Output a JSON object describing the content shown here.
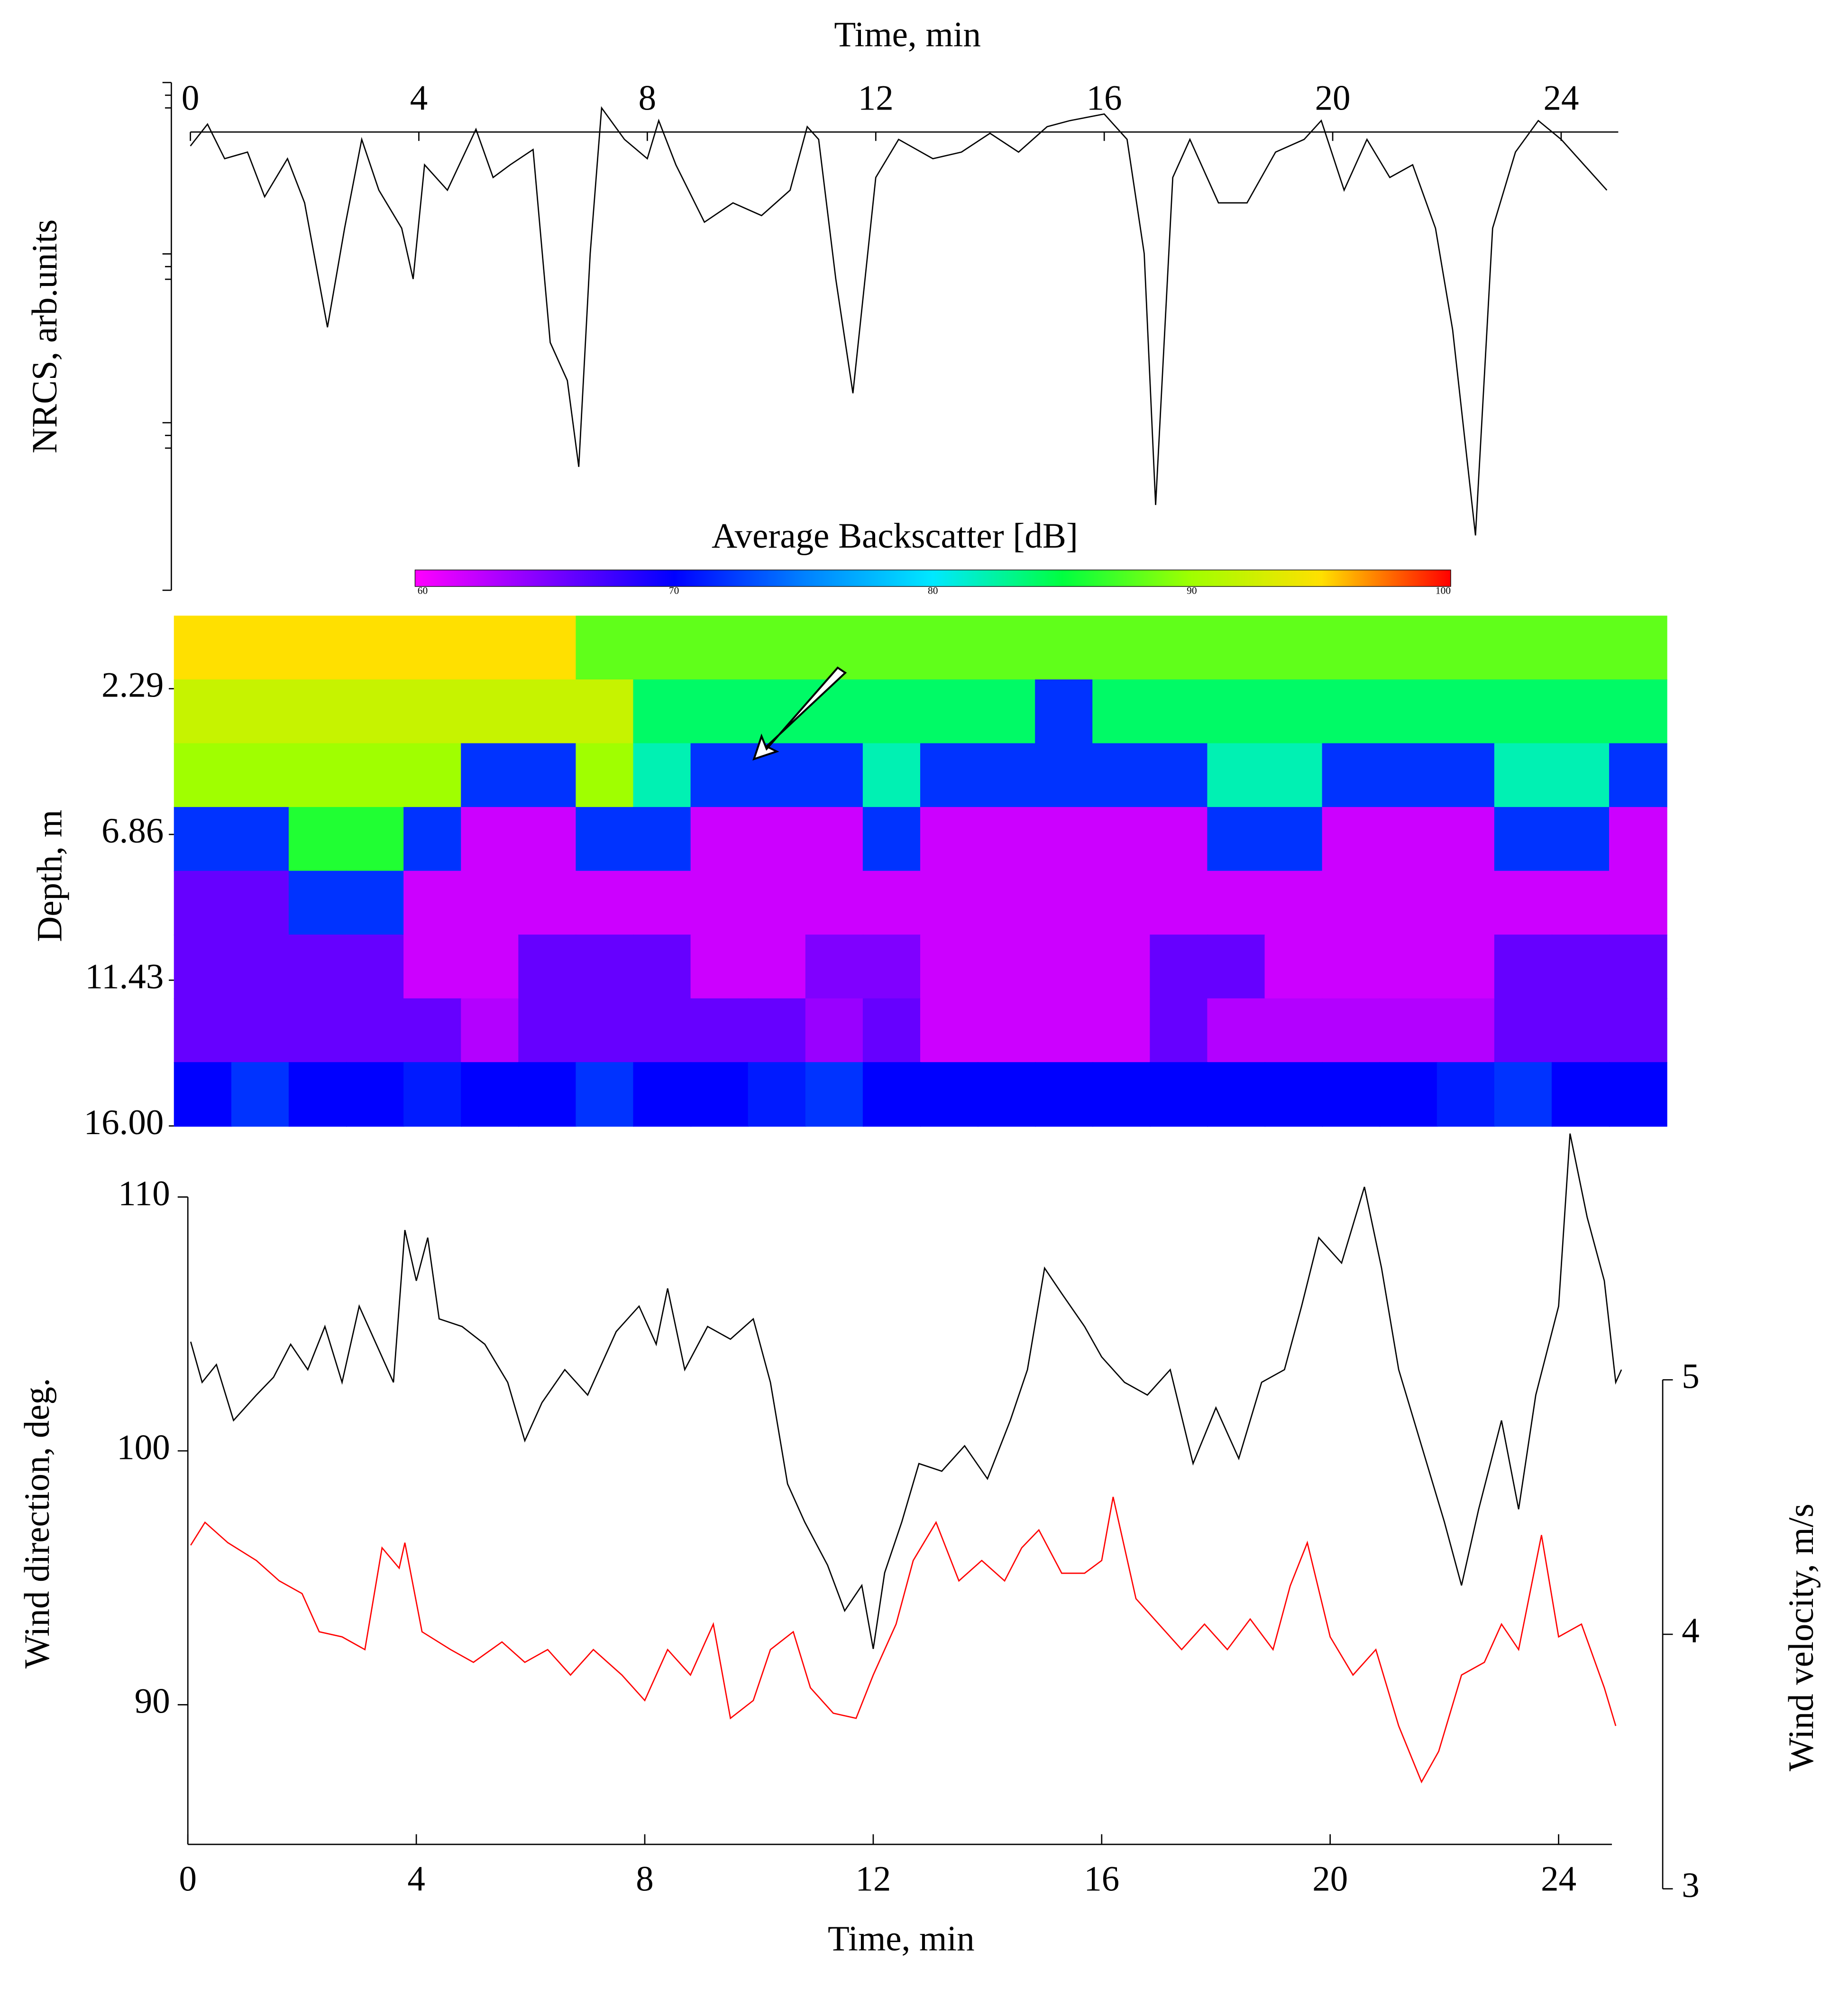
{
  "chart_data": [
    {
      "type": "line",
      "xlabel": "Time, min",
      "ylabel": "NRCS, arb.units",
      "xlim": [
        0,
        25
      ],
      "xticks": [
        0,
        4,
        8,
        12,
        16,
        20,
        24
      ],
      "ylim": [
        0,
        10
      ],
      "x": [
        0,
        0.3,
        0.6,
        1.0,
        1.3,
        1.7,
        2.0,
        2.4,
        2.7,
        3.0,
        3.3,
        3.7,
        3.9,
        4.1,
        4.5,
        5.0,
        5.3,
        5.6,
        6.0,
        6.3,
        6.6,
        6.8,
        7.0,
        7.2,
        7.6,
        8.0,
        8.2,
        8.5,
        9.0,
        9.5,
        10.0,
        10.5,
        10.8,
        11.0,
        11.3,
        11.6,
        12.0,
        12.4,
        13.0,
        13.5,
        14.0,
        14.5,
        15.0,
        15.4,
        16.0,
        16.4,
        16.7,
        16.9,
        17.2,
        17.5,
        18.0,
        18.5,
        19.0,
        19.5,
        19.8,
        20.2,
        20.6,
        21.0,
        21.4,
        21.8,
        22.1,
        22.5,
        22.8,
        23.2,
        23.6,
        24.0,
        24.4,
        24.8
      ],
      "values": [
        8.75,
        9.18,
        8.5,
        8.63,
        7.75,
        8.5,
        7.63,
        5.18,
        7.13,
        8.88,
        7.88,
        7.13,
        6.13,
        8.38,
        7.88,
        9.08,
        8.13,
        8.38,
        8.68,
        4.88,
        4.13,
        2.43,
        6.63,
        9.5,
        8.88,
        8.5,
        9.25,
        8.38,
        7.25,
        7.63,
        7.38,
        7.88,
        9.13,
        8.88,
        6.13,
        3.88,
        8.13,
        8.88,
        8.5,
        8.63,
        9.0,
        8.63,
        9.13,
        9.25,
        9.38,
        8.88,
        6.63,
        1.68,
        8.13,
        8.88,
        7.63,
        7.63,
        8.63,
        8.88,
        9.25,
        7.88,
        8.88,
        8.13,
        8.38,
        7.13,
        5.13,
        1.08,
        7.13,
        8.63,
        9.25,
        8.88,
        8.38,
        7.88
      ],
      "color": "#000000"
    },
    {
      "type": "heatmap",
      "title": "Average Backscatter [dB]",
      "ylabel": "Depth, m",
      "xlim": [
        -0.5,
        25.5
      ],
      "ylim": [
        0,
        16
      ],
      "y_reversed": true,
      "yticks": [
        2.29,
        6.86,
        11.43,
        {
          "value": 16,
          "label": "16.00"
        }
      ],
      "clim": [
        60,
        100
      ],
      "colorbar_ticks": [
        60,
        70,
        80,
        90,
        100
      ],
      "colormap": [
        "#ff00ff",
        "#8000ff",
        "#0000ff",
        "#0080ff",
        "#00e8ff",
        "#00ff40",
        "#a0ff00",
        "#ffe000",
        "#ff0000"
      ],
      "x": [
        0,
        1,
        2,
        3,
        4,
        5,
        6,
        7,
        8,
        9,
        10,
        11,
        12,
        13,
        14,
        15,
        16,
        17,
        18,
        19,
        20,
        21,
        22,
        23,
        24,
        25
      ],
      "y": [
        1,
        3,
        5,
        7,
        9,
        11,
        13,
        15
      ],
      "z": [
        [
          95,
          95,
          95,
          95,
          95,
          95,
          95,
          88,
          88,
          88,
          88,
          88,
          88,
          88,
          88,
          88,
          88,
          88,
          88,
          88,
          88,
          88,
          88,
          88,
          88,
          88
        ],
        [
          92,
          92,
          92,
          92,
          92,
          92,
          92,
          92,
          84,
          84,
          84,
          84,
          84,
          84,
          84,
          72,
          84,
          84,
          84,
          84,
          84,
          84,
          84,
          84,
          84,
          84
        ],
        [
          90,
          90,
          90,
          90,
          90,
          72,
          72,
          90,
          82,
          72,
          72,
          72,
          82,
          72,
          72,
          72,
          72,
          72,
          82,
          82,
          72,
          72,
          72,
          82,
          82,
          72
        ],
        [
          72,
          72,
          86,
          86,
          72,
          62,
          62,
          72,
          72,
          62,
          62,
          62,
          72,
          62,
          62,
          62,
          62,
          62,
          72,
          72,
          62,
          62,
          62,
          72,
          72,
          62
        ],
        [
          66,
          66,
          72,
          72,
          62,
          62,
          62,
          62,
          62,
          62,
          62,
          62,
          62,
          62,
          62,
          62,
          62,
          62,
          62,
          62,
          62,
          62,
          62,
          62,
          62,
          62
        ],
        [
          66,
          66,
          66,
          66,
          62,
          62,
          66,
          66,
          66,
          62,
          62,
          65,
          65,
          62,
          62,
          62,
          62,
          66,
          66,
          62,
          62,
          62,
          62,
          66,
          66,
          66
        ],
        [
          66,
          66,
          66,
          66,
          66,
          63,
          66,
          66,
          66,
          66,
          66,
          64,
          66,
          62,
          62,
          62,
          62,
          66,
          63,
          63,
          63,
          63,
          63,
          66,
          66,
          66
        ],
        [
          70,
          72,
          70,
          70,
          71,
          70,
          70,
          72,
          70,
          70,
          71,
          72,
          70,
          70,
          70,
          70,
          70,
          70,
          70,
          70,
          70,
          70,
          71,
          72,
          70,
          70
        ]
      ]
    },
    {
      "type": "line",
      "xlabel": "Time, min",
      "ylabel": "Wind direction, deg.",
      "y2label": "Wind velocity, m/s",
      "xlim": [
        0,
        25
      ],
      "xticks": [
        0,
        4,
        8,
        12,
        16,
        20,
        24
      ],
      "ylim": [
        84.5,
        110
      ],
      "yticks": [
        90,
        100,
        110
      ],
      "y2lim": [
        3,
        5
      ],
      "y2ticks": [
        3,
        4,
        5
      ],
      "series": [
        {
          "color": "#000000",
          "x": [
            0.05,
            0.25,
            0.5,
            0.8,
            1.2,
            1.5,
            1.8,
            2.1,
            2.4,
            2.7,
            3.0,
            3.3,
            3.6,
            3.8,
            4.0,
            4.2,
            4.4,
            4.8,
            5.2,
            5.6,
            5.9,
            6.2,
            6.6,
            7.0,
            7.5,
            7.9,
            8.2,
            8.4,
            8.7,
            9.1,
            9.5,
            9.9,
            10.2,
            10.5,
            10.8,
            11.2,
            11.5,
            11.8,
            12.0,
            12.2,
            12.5,
            12.8,
            13.2,
            13.6,
            14.0,
            14.4,
            14.7,
            15.0,
            15.3,
            15.7,
            16.0,
            16.4,
            16.8,
            17.2,
            17.6,
            18.0,
            18.4,
            18.8,
            19.2,
            19.5,
            19.8,
            20.2,
            20.6,
            20.9,
            21.2,
            21.6,
            22.0,
            22.3,
            22.6,
            23.0,
            23.3,
            23.6,
            24.0,
            24.2,
            24.5,
            24.8,
            25.0,
            25.1
          ],
          "values": [
            104.3,
            102.7,
            103.4,
            101.2,
            102.2,
            102.9,
            104.2,
            103.2,
            104.9,
            102.7,
            105.7,
            104.2,
            102.7,
            108.7,
            106.7,
            108.4,
            105.2,
            104.9,
            104.2,
            102.7,
            100.4,
            101.9,
            103.2,
            102.2,
            104.7,
            105.7,
            104.2,
            106.4,
            103.2,
            104.9,
            104.4,
            105.2,
            102.7,
            98.7,
            97.2,
            95.5,
            93.7,
            94.7,
            92.2,
            95.2,
            97.2,
            99.5,
            99.2,
            100.2,
            98.9,
            101.2,
            103.2,
            107.2,
            106.2,
            104.9,
            103.7,
            102.7,
            102.2,
            103.2,
            99.5,
            101.7,
            99.7,
            102.7,
            103.2,
            105.7,
            108.4,
            107.4,
            110.4,
            107.2,
            103.2,
            100.2,
            97.2,
            94.7,
            97.7,
            101.2,
            97.7,
            102.2,
            105.7,
            112.5,
            109.2,
            106.7,
            102.7,
            103.2
          ]
        },
        {
          "color": "#ff0000",
          "axis": "y2",
          "x": [
            0.05,
            0.3,
            0.7,
            1.2,
            1.6,
            2.0,
            2.3,
            2.7,
            3.1,
            3.4,
            3.7,
            3.8,
            4.1,
            4.6,
            5.0,
            5.5,
            5.9,
            6.3,
            6.7,
            7.1,
            7.6,
            8.0,
            8.4,
            8.8,
            9.2,
            9.5,
            9.9,
            10.2,
            10.6,
            10.9,
            11.3,
            11.7,
            12.0,
            12.4,
            12.7,
            13.1,
            13.5,
            13.9,
            14.3,
            14.6,
            14.9,
            15.3,
            15.7,
            16.0,
            16.2,
            16.6,
            17.0,
            17.4,
            17.8,
            18.2,
            18.6,
            19.0,
            19.3,
            19.6,
            20.0,
            20.4,
            20.8,
            21.2,
            21.6,
            21.9,
            22.3,
            22.7,
            23.0,
            23.3,
            23.7,
            24.0,
            24.4,
            24.8,
            25.0
          ],
          "values": [
            4.35,
            4.44,
            4.36,
            4.29,
            4.21,
            4.16,
            4.01,
            3.99,
            3.94,
            4.34,
            4.26,
            4.36,
            4.01,
            3.94,
            3.89,
            3.97,
            3.89,
            3.94,
            3.84,
            3.94,
            3.84,
            3.74,
            3.94,
            3.84,
            4.04,
            3.67,
            3.74,
            3.94,
            4.01,
            3.79,
            3.69,
            3.67,
            3.84,
            4.04,
            4.29,
            4.44,
            4.21,
            4.29,
            4.21,
            4.34,
            4.41,
            4.24,
            4.24,
            4.29,
            4.54,
            4.14,
            4.04,
            3.94,
            4.04,
            3.94,
            4.06,
            3.94,
            4.19,
            4.36,
            3.99,
            3.84,
            3.94,
            3.64,
            3.42,
            3.54,
            3.84,
            3.89,
            4.04,
            3.94,
            4.39,
            3.99,
            4.04,
            3.79,
            3.64
          ]
        }
      ]
    }
  ]
}
